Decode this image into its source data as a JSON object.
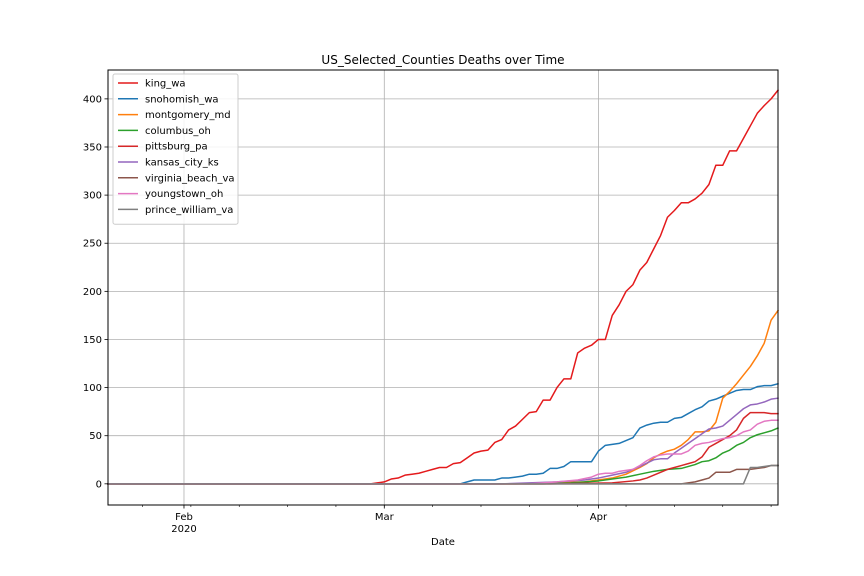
{
  "chart_data": {
    "type": "line",
    "title": "US_Selected_Counties Deaths over Time",
    "xlabel": "Date",
    "ylabel": "",
    "xlim": [
      "2020-01-21",
      "2020-04-27"
    ],
    "ylim": [
      -22,
      430
    ],
    "y_ticks": [
      0,
      50,
      100,
      150,
      200,
      250,
      300,
      350,
      400
    ],
    "x_ticks": [
      {
        "date": "2020-02-01",
        "label": "Feb",
        "sublabel": "2020"
      },
      {
        "date": "2020-03-01",
        "label": "Mar",
        "sublabel": ""
      },
      {
        "date": "2020-04-01",
        "label": "Apr",
        "sublabel": ""
      }
    ],
    "grid": true,
    "legend_position": "top-left",
    "series": [
      {
        "name": "king_wa",
        "color": "#e41a1c",
        "points": [
          [
            "2020-01-21",
            0
          ],
          [
            "2020-02-28",
            0
          ],
          [
            "2020-02-29",
            1
          ],
          [
            "2020-03-01",
            2
          ],
          [
            "2020-03-02",
            5
          ],
          [
            "2020-03-03",
            6
          ],
          [
            "2020-03-04",
            9
          ],
          [
            "2020-03-05",
            10
          ],
          [
            "2020-03-06",
            11
          ],
          [
            "2020-03-07",
            13
          ],
          [
            "2020-03-08",
            15
          ],
          [
            "2020-03-09",
            17
          ],
          [
            "2020-03-10",
            17
          ],
          [
            "2020-03-11",
            21
          ],
          [
            "2020-03-12",
            22
          ],
          [
            "2020-03-13",
            27
          ],
          [
            "2020-03-14",
            32
          ],
          [
            "2020-03-15",
            34
          ],
          [
            "2020-03-16",
            35
          ],
          [
            "2020-03-17",
            43
          ],
          [
            "2020-03-18",
            46
          ],
          [
            "2020-03-19",
            56
          ],
          [
            "2020-03-20",
            60
          ],
          [
            "2020-03-21",
            67
          ],
          [
            "2020-03-22",
            74
          ],
          [
            "2020-03-23",
            75
          ],
          [
            "2020-03-24",
            87
          ],
          [
            "2020-03-25",
            87
          ],
          [
            "2020-03-26",
            100
          ],
          [
            "2020-03-27",
            109
          ],
          [
            "2020-03-28",
            109
          ],
          [
            "2020-03-29",
            136
          ],
          [
            "2020-03-30",
            141
          ],
          [
            "2020-03-31",
            144
          ],
          [
            "2020-04-01",
            150
          ],
          [
            "2020-04-02",
            150
          ],
          [
            "2020-04-03",
            175
          ],
          [
            "2020-04-04",
            186
          ],
          [
            "2020-04-05",
            200
          ],
          [
            "2020-04-06",
            207
          ],
          [
            "2020-04-07",
            222
          ],
          [
            "2020-04-08",
            230
          ],
          [
            "2020-04-09",
            244
          ],
          [
            "2020-04-10",
            258
          ],
          [
            "2020-04-11",
            277
          ],
          [
            "2020-04-12",
            284
          ],
          [
            "2020-04-13",
            292
          ],
          [
            "2020-04-14",
            292
          ],
          [
            "2020-04-15",
            296
          ],
          [
            "2020-04-16",
            302
          ],
          [
            "2020-04-17",
            311
          ],
          [
            "2020-04-18",
            331
          ],
          [
            "2020-04-19",
            331
          ],
          [
            "2020-04-20",
            346
          ],
          [
            "2020-04-21",
            346
          ],
          [
            "2020-04-22",
            359
          ],
          [
            "2020-04-23",
            372
          ],
          [
            "2020-04-24",
            385
          ],
          [
            "2020-04-25",
            393
          ],
          [
            "2020-04-26",
            400
          ],
          [
            "2020-04-27",
            409
          ]
        ]
      },
      {
        "name": "snohomish_wa",
        "color": "#1f77b4",
        "points": [
          [
            "2020-01-21",
            0
          ],
          [
            "2020-03-01",
            0
          ],
          [
            "2020-03-12",
            0
          ],
          [
            "2020-03-13",
            2
          ],
          [
            "2020-03-14",
            4
          ],
          [
            "2020-03-15",
            4
          ],
          [
            "2020-03-16",
            4
          ],
          [
            "2020-03-17",
            4
          ],
          [
            "2020-03-18",
            6
          ],
          [
            "2020-03-19",
            6
          ],
          [
            "2020-03-20",
            7
          ],
          [
            "2020-03-21",
            8
          ],
          [
            "2020-03-22",
            10
          ],
          [
            "2020-03-23",
            10
          ],
          [
            "2020-03-24",
            11
          ],
          [
            "2020-03-25",
            16
          ],
          [
            "2020-03-26",
            16
          ],
          [
            "2020-03-27",
            18
          ],
          [
            "2020-03-28",
            23
          ],
          [
            "2020-03-29",
            23
          ],
          [
            "2020-03-30",
            23
          ],
          [
            "2020-03-31",
            23
          ],
          [
            "2020-04-01",
            34
          ],
          [
            "2020-04-02",
            40
          ],
          [
            "2020-04-03",
            41
          ],
          [
            "2020-04-04",
            42
          ],
          [
            "2020-04-05",
            45
          ],
          [
            "2020-04-06",
            48
          ],
          [
            "2020-04-07",
            58
          ],
          [
            "2020-04-08",
            61
          ],
          [
            "2020-04-09",
            63
          ],
          [
            "2020-04-10",
            64
          ],
          [
            "2020-04-11",
            64
          ],
          [
            "2020-04-12",
            68
          ],
          [
            "2020-04-13",
            69
          ],
          [
            "2020-04-14",
            73
          ],
          [
            "2020-04-15",
            77
          ],
          [
            "2020-04-16",
            80
          ],
          [
            "2020-04-17",
            86
          ],
          [
            "2020-04-18",
            88
          ],
          [
            "2020-04-19",
            91
          ],
          [
            "2020-04-20",
            94
          ],
          [
            "2020-04-21",
            97
          ],
          [
            "2020-04-22",
            98
          ],
          [
            "2020-04-23",
            98
          ],
          [
            "2020-04-24",
            101
          ],
          [
            "2020-04-25",
            102
          ],
          [
            "2020-04-26",
            102
          ],
          [
            "2020-04-27",
            104
          ]
        ]
      },
      {
        "name": "montgomery_md",
        "color": "#ff7f0e",
        "points": [
          [
            "2020-01-21",
            0
          ],
          [
            "2020-03-20",
            0
          ],
          [
            "2020-03-25",
            1
          ],
          [
            "2020-03-30",
            2
          ],
          [
            "2020-04-01",
            4
          ],
          [
            "2020-04-03",
            6
          ],
          [
            "2020-04-05",
            10
          ],
          [
            "2020-04-07",
            17
          ],
          [
            "2020-04-08",
            21
          ],
          [
            "2020-04-09",
            27
          ],
          [
            "2020-04-10",
            31
          ],
          [
            "2020-04-11",
            34
          ],
          [
            "2020-04-12",
            36
          ],
          [
            "2020-04-13",
            40
          ],
          [
            "2020-04-14",
            46
          ],
          [
            "2020-04-15",
            54
          ],
          [
            "2020-04-16",
            54
          ],
          [
            "2020-04-17",
            55
          ],
          [
            "2020-04-18",
            64
          ],
          [
            "2020-04-19",
            89
          ],
          [
            "2020-04-20",
            96
          ],
          [
            "2020-04-21",
            104
          ],
          [
            "2020-04-22",
            113
          ],
          [
            "2020-04-23",
            122
          ],
          [
            "2020-04-24",
            133
          ],
          [
            "2020-04-25",
            146
          ],
          [
            "2020-04-26",
            170
          ],
          [
            "2020-04-27",
            180
          ]
        ]
      },
      {
        "name": "columbus_oh",
        "color": "#2ca02c",
        "points": [
          [
            "2020-01-21",
            0
          ],
          [
            "2020-03-24",
            0
          ],
          [
            "2020-03-28",
            1
          ],
          [
            "2020-04-01",
            3
          ],
          [
            "2020-04-03",
            5
          ],
          [
            "2020-04-05",
            7
          ],
          [
            "2020-04-07",
            10
          ],
          [
            "2020-04-09",
            13
          ],
          [
            "2020-04-11",
            15
          ],
          [
            "2020-04-13",
            16
          ],
          [
            "2020-04-15",
            20
          ],
          [
            "2020-04-16",
            23
          ],
          [
            "2020-04-17",
            24
          ],
          [
            "2020-04-18",
            27
          ],
          [
            "2020-04-19",
            32
          ],
          [
            "2020-04-20",
            35
          ],
          [
            "2020-04-21",
            40
          ],
          [
            "2020-04-22",
            43
          ],
          [
            "2020-04-23",
            48
          ],
          [
            "2020-04-24",
            51
          ],
          [
            "2020-04-25",
            53
          ],
          [
            "2020-04-26",
            55
          ],
          [
            "2020-04-27",
            58
          ]
        ]
      },
      {
        "name": "pittsburg_pa",
        "color": "#d62728",
        "points": [
          [
            "2020-01-21",
            0
          ],
          [
            "2020-03-25",
            0
          ],
          [
            "2020-04-03",
            1
          ],
          [
            "2020-04-06",
            3
          ],
          [
            "2020-04-07",
            4
          ],
          [
            "2020-04-08",
            6
          ],
          [
            "2020-04-09",
            9
          ],
          [
            "2020-04-10",
            12
          ],
          [
            "2020-04-11",
            15
          ],
          [
            "2020-04-12",
            17
          ],
          [
            "2020-04-13",
            19
          ],
          [
            "2020-04-14",
            21
          ],
          [
            "2020-04-15",
            23
          ],
          [
            "2020-04-16",
            28
          ],
          [
            "2020-04-17",
            38
          ],
          [
            "2020-04-18",
            42
          ],
          [
            "2020-04-19",
            46
          ],
          [
            "2020-04-20",
            50
          ],
          [
            "2020-04-21",
            56
          ],
          [
            "2020-04-22",
            68
          ],
          [
            "2020-04-23",
            74
          ],
          [
            "2020-04-24",
            74
          ],
          [
            "2020-04-25",
            74
          ],
          [
            "2020-04-26",
            73
          ],
          [
            "2020-04-27",
            73
          ]
        ]
      },
      {
        "name": "kansas_city_ks",
        "color": "#9467bd",
        "points": [
          [
            "2020-01-21",
            0
          ],
          [
            "2020-03-18",
            0
          ],
          [
            "2020-03-22",
            1
          ],
          [
            "2020-03-26",
            2
          ],
          [
            "2020-03-30",
            4
          ],
          [
            "2020-04-01",
            6
          ],
          [
            "2020-04-03",
            9
          ],
          [
            "2020-04-05",
            12
          ],
          [
            "2020-04-07",
            18
          ],
          [
            "2020-04-09",
            25
          ],
          [
            "2020-04-10",
            26
          ],
          [
            "2020-04-11",
            26
          ],
          [
            "2020-04-12",
            32
          ],
          [
            "2020-04-13",
            37
          ],
          [
            "2020-04-14",
            42
          ],
          [
            "2020-04-15",
            47
          ],
          [
            "2020-04-16",
            52
          ],
          [
            "2020-04-17",
            57
          ],
          [
            "2020-04-18",
            58
          ],
          [
            "2020-04-19",
            60
          ],
          [
            "2020-04-20",
            66
          ],
          [
            "2020-04-21",
            72
          ],
          [
            "2020-04-22",
            78
          ],
          [
            "2020-04-23",
            82
          ],
          [
            "2020-04-24",
            83
          ],
          [
            "2020-04-25",
            85
          ],
          [
            "2020-04-26",
            88
          ],
          [
            "2020-04-27",
            89
          ]
        ]
      },
      {
        "name": "virginia_beach_va",
        "color": "#8c564b",
        "points": [
          [
            "2020-01-21",
            0
          ],
          [
            "2020-04-13",
            0
          ],
          [
            "2020-04-14",
            1
          ],
          [
            "2020-04-15",
            2
          ],
          [
            "2020-04-16",
            4
          ],
          [
            "2020-04-17",
            6
          ],
          [
            "2020-04-18",
            12
          ],
          [
            "2020-04-19",
            12
          ],
          [
            "2020-04-20",
            12
          ],
          [
            "2020-04-21",
            15
          ],
          [
            "2020-04-22",
            15
          ],
          [
            "2020-04-23",
            15
          ],
          [
            "2020-04-24",
            16
          ],
          [
            "2020-04-25",
            17
          ],
          [
            "2020-04-26",
            19
          ],
          [
            "2020-04-27",
            19
          ]
        ]
      },
      {
        "name": "youngstown_oh",
        "color": "#e377c2",
        "points": [
          [
            "2020-01-21",
            0
          ],
          [
            "2020-03-22",
            0
          ],
          [
            "2020-03-26",
            2
          ],
          [
            "2020-03-29",
            4
          ],
          [
            "2020-03-31",
            7
          ],
          [
            "2020-04-01",
            10
          ],
          [
            "2020-04-02",
            11
          ],
          [
            "2020-04-03",
            11
          ],
          [
            "2020-04-04",
            13
          ],
          [
            "2020-04-05",
            14
          ],
          [
            "2020-04-06",
            15
          ],
          [
            "2020-04-07",
            19
          ],
          [
            "2020-04-08",
            24
          ],
          [
            "2020-04-09",
            28
          ],
          [
            "2020-04-10",
            30
          ],
          [
            "2020-04-11",
            31
          ],
          [
            "2020-04-12",
            31
          ],
          [
            "2020-04-13",
            31
          ],
          [
            "2020-04-14",
            34
          ],
          [
            "2020-04-15",
            40
          ],
          [
            "2020-04-16",
            42
          ],
          [
            "2020-04-17",
            43
          ],
          [
            "2020-04-18",
            45
          ],
          [
            "2020-04-19",
            47
          ],
          [
            "2020-04-20",
            48
          ],
          [
            "2020-04-21",
            50
          ],
          [
            "2020-04-22",
            54
          ],
          [
            "2020-04-23",
            56
          ],
          [
            "2020-04-24",
            62
          ],
          [
            "2020-04-25",
            65
          ],
          [
            "2020-04-26",
            66
          ],
          [
            "2020-04-27",
            66
          ]
        ]
      },
      {
        "name": "prince_william_va",
        "color": "#7f7f7f",
        "points": [
          [
            "2020-01-21",
            0
          ],
          [
            "2020-04-21",
            0
          ],
          [
            "2020-04-22",
            0
          ],
          [
            "2020-04-23",
            17
          ],
          [
            "2020-04-24",
            17
          ],
          [
            "2020-04-25",
            18
          ],
          [
            "2020-04-26",
            19
          ],
          [
            "2020-04-27",
            19
          ]
        ]
      }
    ]
  }
}
